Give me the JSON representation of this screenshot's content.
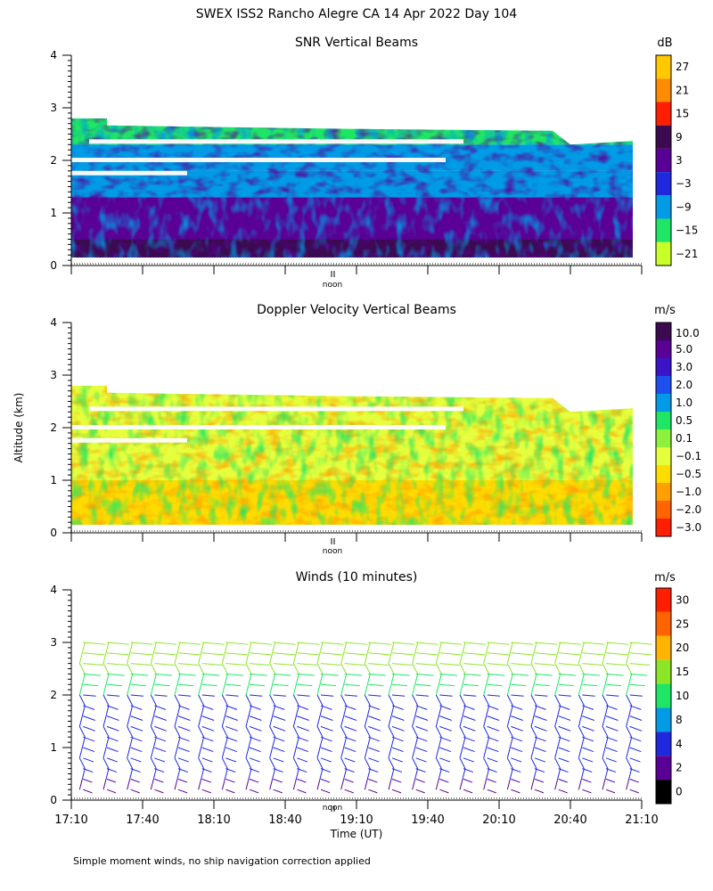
{
  "figure": {
    "title": "SWEX ISS2 Rancho Alegre CA  14 Apr 2022 Day 104",
    "ylabel": "Altitude (km)",
    "xlabel": "Time (UT)",
    "noon_label": "noon",
    "footnote": "Simple moment winds, no ship navigation correction applied",
    "x_ticks": [
      "17:10",
      "17:40",
      "18:10",
      "18:40",
      "19:10",
      "19:40",
      "20:10",
      "20:40",
      "21:10"
    ],
    "y_ticks": [
      "0",
      "1",
      "2",
      "3",
      "4"
    ]
  },
  "chart_data": [
    {
      "type": "heatmap",
      "title": "SNR Vertical Beams",
      "colorbar_unit": "dB",
      "colorbar_ticks": [
        "27",
        "21",
        "15",
        "9",
        "3",
        "−3",
        "−9",
        "−15",
        "−21"
      ],
      "colorbar_colors": [
        "#ffc800",
        "#ff8c00",
        "#ff1e00",
        "#3c0a50",
        "#5a0096",
        "#1e28dc",
        "#009be6",
        "#1ee664",
        "#c8ff28"
      ],
      "x_range_hours_ut": [
        17.1667,
        21.1667
      ],
      "y_range_km": [
        0,
        4
      ],
      "data_top_km_start": 2.8,
      "data_top_km_end": 2.3,
      "data_bottom_km": 0.15,
      "layers": [
        {
          "from_km": 0.15,
          "to_km": 0.5,
          "value_db": 10
        },
        {
          "from_km": 0.5,
          "to_km": 1.3,
          "value_db": 0
        },
        {
          "from_km": 1.3,
          "to_km": 1.8,
          "value_db": -12
        },
        {
          "from_km": 1.8,
          "to_km": 2.3,
          "value_db": -8
        },
        {
          "from_km": 2.3,
          "to_km": 2.8,
          "value_db": -14
        }
      ]
    },
    {
      "type": "heatmap",
      "title": "Doppler Velocity Vertical Beams",
      "colorbar_unit": "m/s",
      "colorbar_ticks": [
        "10.0",
        "5.0",
        "3.0",
        "2.0",
        "1.0",
        "0.5",
        "0.1",
        "−0.1",
        "−0.5",
        "−1.0",
        "−2.0",
        "−3.0"
      ],
      "colorbar_colors": [
        "#3c0a50",
        "#5a0096",
        "#3c14c8",
        "#1e50f0",
        "#009be6",
        "#1ee664",
        "#8cf03c",
        "#e6ff3c",
        "#ffdc00",
        "#ffa000",
        "#ff6400",
        "#ff1e00"
      ],
      "x_range_hours_ut": [
        17.1667,
        21.1667
      ],
      "y_range_km": [
        0,
        4
      ],
      "data_top_km_start": 2.8,
      "data_top_km_end": 2.3,
      "data_bottom_km": 0.15,
      "layers": [
        {
          "from_km": 0.15,
          "to_km": 1.0,
          "value_ms": -0.7
        },
        {
          "from_km": 1.0,
          "to_km": 1.8,
          "value_ms": -0.3
        },
        {
          "from_km": 1.8,
          "to_km": 2.8,
          "value_ms": -0.05
        }
      ]
    },
    {
      "type": "scatter",
      "title": "Winds (10 minutes)",
      "colorbar_unit": "m/s",
      "colorbar_ticks": [
        "30",
        "25",
        "20",
        "15",
        "10",
        "8",
        "4",
        "2",
        "0"
      ],
      "colorbar_colors": [
        "#ff1e00",
        "#ff6400",
        "#ffb400",
        "#8ce628",
        "#1ee664",
        "#009be6",
        "#1e28dc",
        "#5a0096",
        "#000000"
      ],
      "x_range_hours_ut": [
        17.1667,
        21.1667
      ],
      "y_range_km": [
        0,
        4
      ],
      "profile_interval_min": 10,
      "profile_count": 24,
      "range_gates_km": [
        0.2,
        0.4,
        0.6,
        0.8,
        1.0,
        1.2,
        1.4,
        1.6,
        1.8,
        2.0,
        2.2,
        2.4,
        2.6,
        2.8,
        3.0
      ],
      "speed_profile_ms": [
        3,
        3,
        4,
        5,
        6,
        6,
        7,
        7,
        6,
        7,
        10,
        13,
        16,
        18,
        19
      ]
    }
  ]
}
